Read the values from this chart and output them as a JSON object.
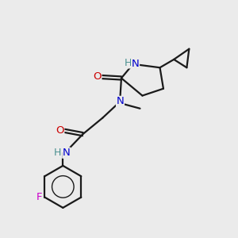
{
  "background_color": "#ebebeb",
  "atom_colors": {
    "C": "#000000",
    "N": "#0000cc",
    "O": "#cc0000",
    "F": "#cc00cc",
    "H": "#4a9090"
  },
  "bond_color": "#1a1a1a",
  "bond_width": 1.6,
  "font_size": 9.5
}
